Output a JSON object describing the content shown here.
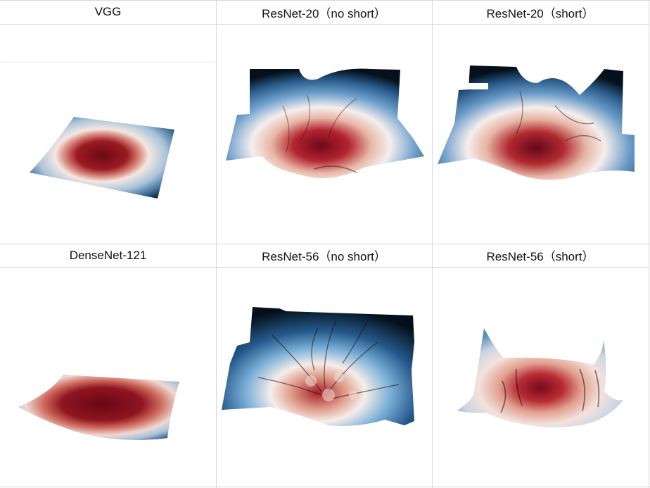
{
  "panels": [
    {
      "title": "VGG",
      "surface": "vgg"
    },
    {
      "title": "ResNet-20（no short）",
      "surface": "resnet20-noshort"
    },
    {
      "title": "ResNet-20（short）",
      "surface": "resnet20-short"
    },
    {
      "title": "DenseNet-121",
      "surface": "densenet121"
    },
    {
      "title": "ResNet-56（no short）",
      "surface": "resnet56-noshort"
    },
    {
      "title": "ResNet-56（short）",
      "surface": "resnet56-short"
    }
  ],
  "colors": {
    "low": "#6b0a14",
    "mid_low": "#c9453f",
    "mid": "#f4eae6",
    "mid_high": "#5f98c9",
    "high": "#071622",
    "grid_line": "#d9d9d9"
  }
}
